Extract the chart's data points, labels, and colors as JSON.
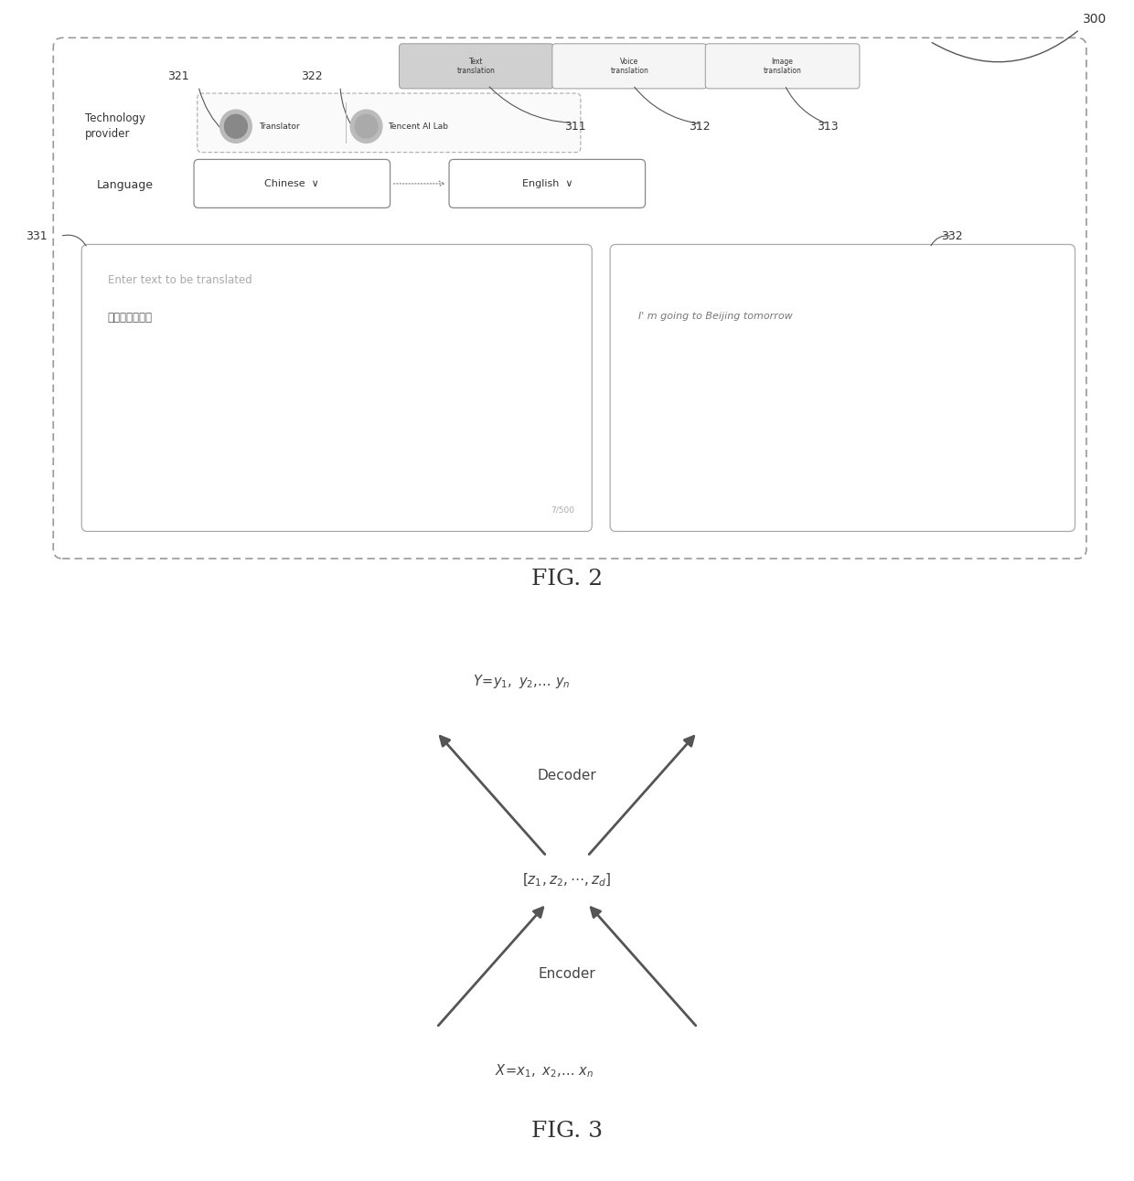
{
  "fig_width": 12.4,
  "fig_height": 12.92,
  "bg_color": "#ffffff",
  "fig2": {
    "tab_texts": [
      "Text\ntranslation",
      "Voice\ntranslation",
      "Image\ntranslation"
    ],
    "tech_provider_text": "Technology\nprovider",
    "translator_text": "Translator",
    "tencent_text": "Tencent AI Lab",
    "language_text": "Language",
    "chinese_text": "Chinese  ∨",
    "english_text": "English  ∨",
    "enter_text": "Enter text to be translated",
    "chinese_input": "我明天去北京玩",
    "counter_text": "7/500",
    "output_text": "I' m going to Beijing tomorrow",
    "fig_label": "FIG. 2",
    "labels": [
      "300",
      "321",
      "322",
      "311",
      "312",
      "313",
      "331",
      "332"
    ]
  },
  "fig3": {
    "y_label": "Y=y₁, y₂,... yₙ",
    "center_label": "[z₁,z₂,⋯,zₙ]",
    "decoder_label": "Decoder",
    "encoder_label": "Encoder",
    "x_label": "X=x₁, x₂,... xₙ",
    "fig_label": "FIG. 3"
  }
}
